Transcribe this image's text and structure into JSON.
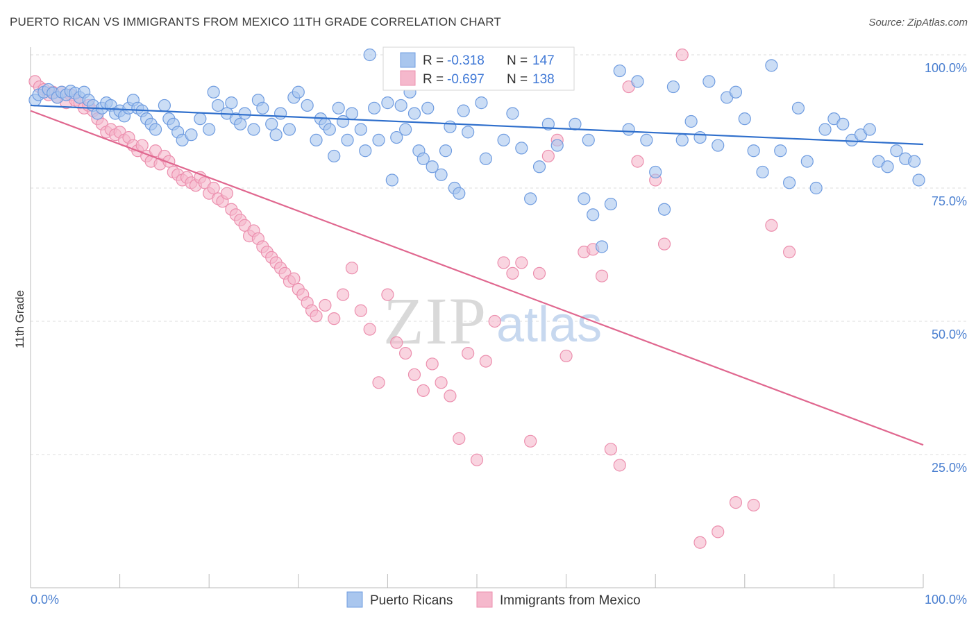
{
  "title": "PUERTO RICAN VS IMMIGRANTS FROM MEXICO 11TH GRADE CORRELATION CHART",
  "source": "Source: ZipAtlas.com",
  "watermark": {
    "zip": "ZIP",
    "atlas": "atlas"
  },
  "colors": {
    "blue_fill": "#a9c6ee",
    "blue_stroke": "#6f9ce0",
    "blue_line": "#2f6fcc",
    "pink_fill": "#f5b8cc",
    "pink_stroke": "#ec8fae",
    "pink_line": "#e0678f",
    "axis_label": "#4a7fd0",
    "grid": "#dddddd"
  },
  "legend": {
    "row1": {
      "r_label": "R =",
      "r_value": "-0.318",
      "n_label": "N =",
      "n_value": "147"
    },
    "row2": {
      "r_label": "R =",
      "r_value": "-0.697",
      "n_label": "N =",
      "n_value": "138"
    }
  },
  "bottom_legend": {
    "series1": "Puerto Ricans",
    "series2": "Immigrants from Mexico"
  },
  "chart_data": {
    "type": "scatter",
    "title": "PUERTO RICAN VS IMMIGRANTS FROM MEXICO 11TH GRADE CORRELATION CHART",
    "xlabel": "",
    "ylabel": "11th Grade",
    "xlim": [
      0,
      100
    ],
    "ylim": [
      0,
      100
    ],
    "x_tick_labels": [
      "0.0%",
      "100.0%"
    ],
    "y_ticks": [
      25,
      50,
      75,
      100
    ],
    "y_tick_labels": [
      "25.0%",
      "50.0%",
      "75.0%",
      "100.0%"
    ],
    "grid": true,
    "legend_position": "top-center",
    "series": [
      {
        "name": "Puerto Ricans",
        "r": -0.318,
        "n": 147,
        "trend": [
          [
            0,
            90.5
          ],
          [
            100,
            83.2
          ]
        ],
        "points": [
          [
            0.5,
            91.5
          ],
          [
            0.9,
            92.5
          ],
          [
            1.5,
            93
          ],
          [
            2,
            93.5
          ],
          [
            2.5,
            92.8
          ],
          [
            3,
            92
          ],
          [
            3.5,
            93
          ],
          [
            4,
            92.5
          ],
          [
            4.5,
            93.2
          ],
          [
            5,
            92.8
          ],
          [
            5.5,
            92
          ],
          [
            6,
            93
          ],
          [
            6.5,
            91.5
          ],
          [
            7,
            90.5
          ],
          [
            7.5,
            89
          ],
          [
            8,
            90
          ],
          [
            8.5,
            91
          ],
          [
            9,
            90.5
          ],
          [
            9.5,
            89
          ],
          [
            10,
            89.5
          ],
          [
            10.5,
            88.5
          ],
          [
            11,
            90
          ],
          [
            11.5,
            91.5
          ],
          [
            12,
            90
          ],
          [
            12.5,
            89.5
          ],
          [
            13,
            88
          ],
          [
            13.5,
            87
          ],
          [
            14,
            86
          ],
          [
            15,
            90.5
          ],
          [
            15.5,
            88
          ],
          [
            16,
            87
          ],
          [
            16.5,
            85.5
          ],
          [
            17,
            84
          ],
          [
            18,
            85
          ],
          [
            19,
            88
          ],
          [
            20,
            86
          ],
          [
            20.5,
            93
          ],
          [
            21,
            90.5
          ],
          [
            22,
            89
          ],
          [
            22.5,
            91
          ],
          [
            23,
            88
          ],
          [
            23.5,
            87
          ],
          [
            24,
            89
          ],
          [
            25,
            86
          ],
          [
            25.5,
            91.5
          ],
          [
            26,
            90
          ],
          [
            27,
            87
          ],
          [
            27.5,
            85
          ],
          [
            28,
            89
          ],
          [
            29,
            86
          ],
          [
            29.5,
            92
          ],
          [
            30,
            93
          ],
          [
            31,
            90.5
          ],
          [
            32,
            84
          ],
          [
            32.5,
            88
          ],
          [
            33,
            87
          ],
          [
            33.5,
            86
          ],
          [
            34,
            81
          ],
          [
            34.5,
            90
          ],
          [
            35,
            87.5
          ],
          [
            35.5,
            84
          ],
          [
            36,
            89
          ],
          [
            37,
            86
          ],
          [
            37.5,
            82
          ],
          [
            38,
            100
          ],
          [
            38.5,
            90
          ],
          [
            39,
            84
          ],
          [
            40,
            91
          ],
          [
            40.5,
            76.5
          ],
          [
            41,
            84.5
          ],
          [
            41.5,
            90.5
          ],
          [
            42,
            86
          ],
          [
            42.5,
            93
          ],
          [
            43,
            89
          ],
          [
            43.5,
            82
          ],
          [
            44,
            80.5
          ],
          [
            44.5,
            90
          ],
          [
            45,
            79
          ],
          [
            46,
            77.5
          ],
          [
            46.5,
            82
          ],
          [
            47,
            86.5
          ],
          [
            47.5,
            75
          ],
          [
            48,
            74
          ],
          [
            48.5,
            89.5
          ],
          [
            49,
            85.5
          ],
          [
            50,
            100
          ],
          [
            50.5,
            91
          ],
          [
            51,
            80.5
          ],
          [
            52,
            100
          ],
          [
            53,
            84
          ],
          [
            54,
            89
          ],
          [
            55,
            82.5
          ],
          [
            56,
            73
          ],
          [
            57,
            79
          ],
          [
            58,
            87
          ],
          [
            59,
            83
          ],
          [
            60,
            99.5
          ],
          [
            61,
            87
          ],
          [
            62,
            73
          ],
          [
            62.5,
            84
          ],
          [
            63,
            70
          ],
          [
            64,
            64
          ],
          [
            65,
            72
          ],
          [
            66,
            97
          ],
          [
            67,
            86
          ],
          [
            68,
            95
          ],
          [
            69,
            84
          ],
          [
            70,
            78
          ],
          [
            71,
            71
          ],
          [
            72,
            94
          ],
          [
            73,
            84
          ],
          [
            74,
            87.5
          ],
          [
            75,
            84.5
          ],
          [
            76,
            95
          ],
          [
            77,
            83
          ],
          [
            78,
            92
          ],
          [
            79,
            93
          ],
          [
            80,
            88
          ],
          [
            81,
            82
          ],
          [
            82,
            78
          ],
          [
            83,
            98
          ],
          [
            84,
            82
          ],
          [
            85,
            76
          ],
          [
            86,
            90
          ],
          [
            87,
            80
          ],
          [
            88,
            75
          ],
          [
            89,
            86
          ],
          [
            90,
            88
          ],
          [
            91,
            87
          ],
          [
            92,
            84
          ],
          [
            93,
            85
          ],
          [
            94,
            86
          ],
          [
            95,
            80
          ],
          [
            96,
            79
          ],
          [
            97,
            82
          ],
          [
            98,
            80.5
          ],
          [
            99,
            80
          ],
          [
            99.5,
            76.5
          ]
        ]
      },
      {
        "name": "Immigrants from Mexico",
        "r": -0.697,
        "n": 138,
        "trend": [
          [
            0,
            89.5
          ],
          [
            100,
            26.8
          ]
        ],
        "points": [
          [
            0.5,
            95
          ],
          [
            1,
            94
          ],
          [
            1.5,
            93.5
          ],
          [
            2,
            92.5
          ],
          [
            2.5,
            93
          ],
          [
            3,
            92
          ],
          [
            3.5,
            93
          ],
          [
            4,
            91
          ],
          [
            4.5,
            92.5
          ],
          [
            5,
            91.5
          ],
          [
            5.5,
            91
          ],
          [
            6,
            90
          ],
          [
            6.5,
            90.5
          ],
          [
            7,
            89.5
          ],
          [
            7.5,
            88
          ],
          [
            8,
            87
          ],
          [
            8.5,
            85.5
          ],
          [
            9,
            86
          ],
          [
            9.5,
            85
          ],
          [
            10,
            85.5
          ],
          [
            10.5,
            84
          ],
          [
            11,
            84.5
          ],
          [
            11.5,
            83
          ],
          [
            12,
            82
          ],
          [
            12.5,
            83
          ],
          [
            13,
            81
          ],
          [
            13.5,
            80
          ],
          [
            14,
            82
          ],
          [
            14.5,
            79.5
          ],
          [
            15,
            81
          ],
          [
            15.5,
            80
          ],
          [
            16,
            78
          ],
          [
            16.5,
            77.5
          ],
          [
            17,
            76.5
          ],
          [
            17.5,
            77
          ],
          [
            18,
            76
          ],
          [
            18.5,
            75.5
          ],
          [
            19,
            77
          ],
          [
            19.5,
            76
          ],
          [
            20,
            74
          ],
          [
            20.5,
            75
          ],
          [
            21,
            73
          ],
          [
            21.5,
            72.5
          ],
          [
            22,
            74
          ],
          [
            22.5,
            71
          ],
          [
            23,
            70
          ],
          [
            23.5,
            69
          ],
          [
            24,
            68
          ],
          [
            24.5,
            66
          ],
          [
            25,
            67
          ],
          [
            25.5,
            65.5
          ],
          [
            26,
            64
          ],
          [
            26.5,
            63
          ],
          [
            27,
            62
          ],
          [
            27.5,
            61
          ],
          [
            28,
            60
          ],
          [
            28.5,
            59
          ],
          [
            29,
            57.5
          ],
          [
            29.5,
            58
          ],
          [
            30,
            56
          ],
          [
            30.5,
            55
          ],
          [
            31,
            53.5
          ],
          [
            31.5,
            52
          ],
          [
            32,
            51
          ],
          [
            33,
            53
          ],
          [
            34,
            50.5
          ],
          [
            35,
            55
          ],
          [
            36,
            60
          ],
          [
            37,
            52
          ],
          [
            38,
            48.5
          ],
          [
            39,
            38.5
          ],
          [
            40,
            55
          ],
          [
            41,
            46
          ],
          [
            42,
            44
          ],
          [
            43,
            40
          ],
          [
            44,
            37
          ],
          [
            45,
            42
          ],
          [
            46,
            38.5
          ],
          [
            47,
            36
          ],
          [
            48,
            28
          ],
          [
            49,
            44
          ],
          [
            50,
            24
          ],
          [
            51,
            42.5
          ],
          [
            52,
            50
          ],
          [
            53,
            61
          ],
          [
            54,
            59
          ],
          [
            55,
            61
          ],
          [
            56,
            27.5
          ],
          [
            57,
            59
          ],
          [
            58,
            81
          ],
          [
            59,
            84
          ],
          [
            60,
            43.5
          ],
          [
            62,
            63
          ],
          [
            63,
            63.5
          ],
          [
            64,
            58.5
          ],
          [
            65,
            26
          ],
          [
            66,
            23
          ],
          [
            67,
            94
          ],
          [
            68,
            80
          ],
          [
            70,
            76.5
          ],
          [
            71,
            64.5
          ],
          [
            73,
            100
          ],
          [
            75,
            8.5
          ],
          [
            77,
            10.5
          ],
          [
            79,
            16
          ],
          [
            81,
            15.5
          ],
          [
            83,
            68
          ],
          [
            85,
            63
          ]
        ]
      }
    ]
  }
}
